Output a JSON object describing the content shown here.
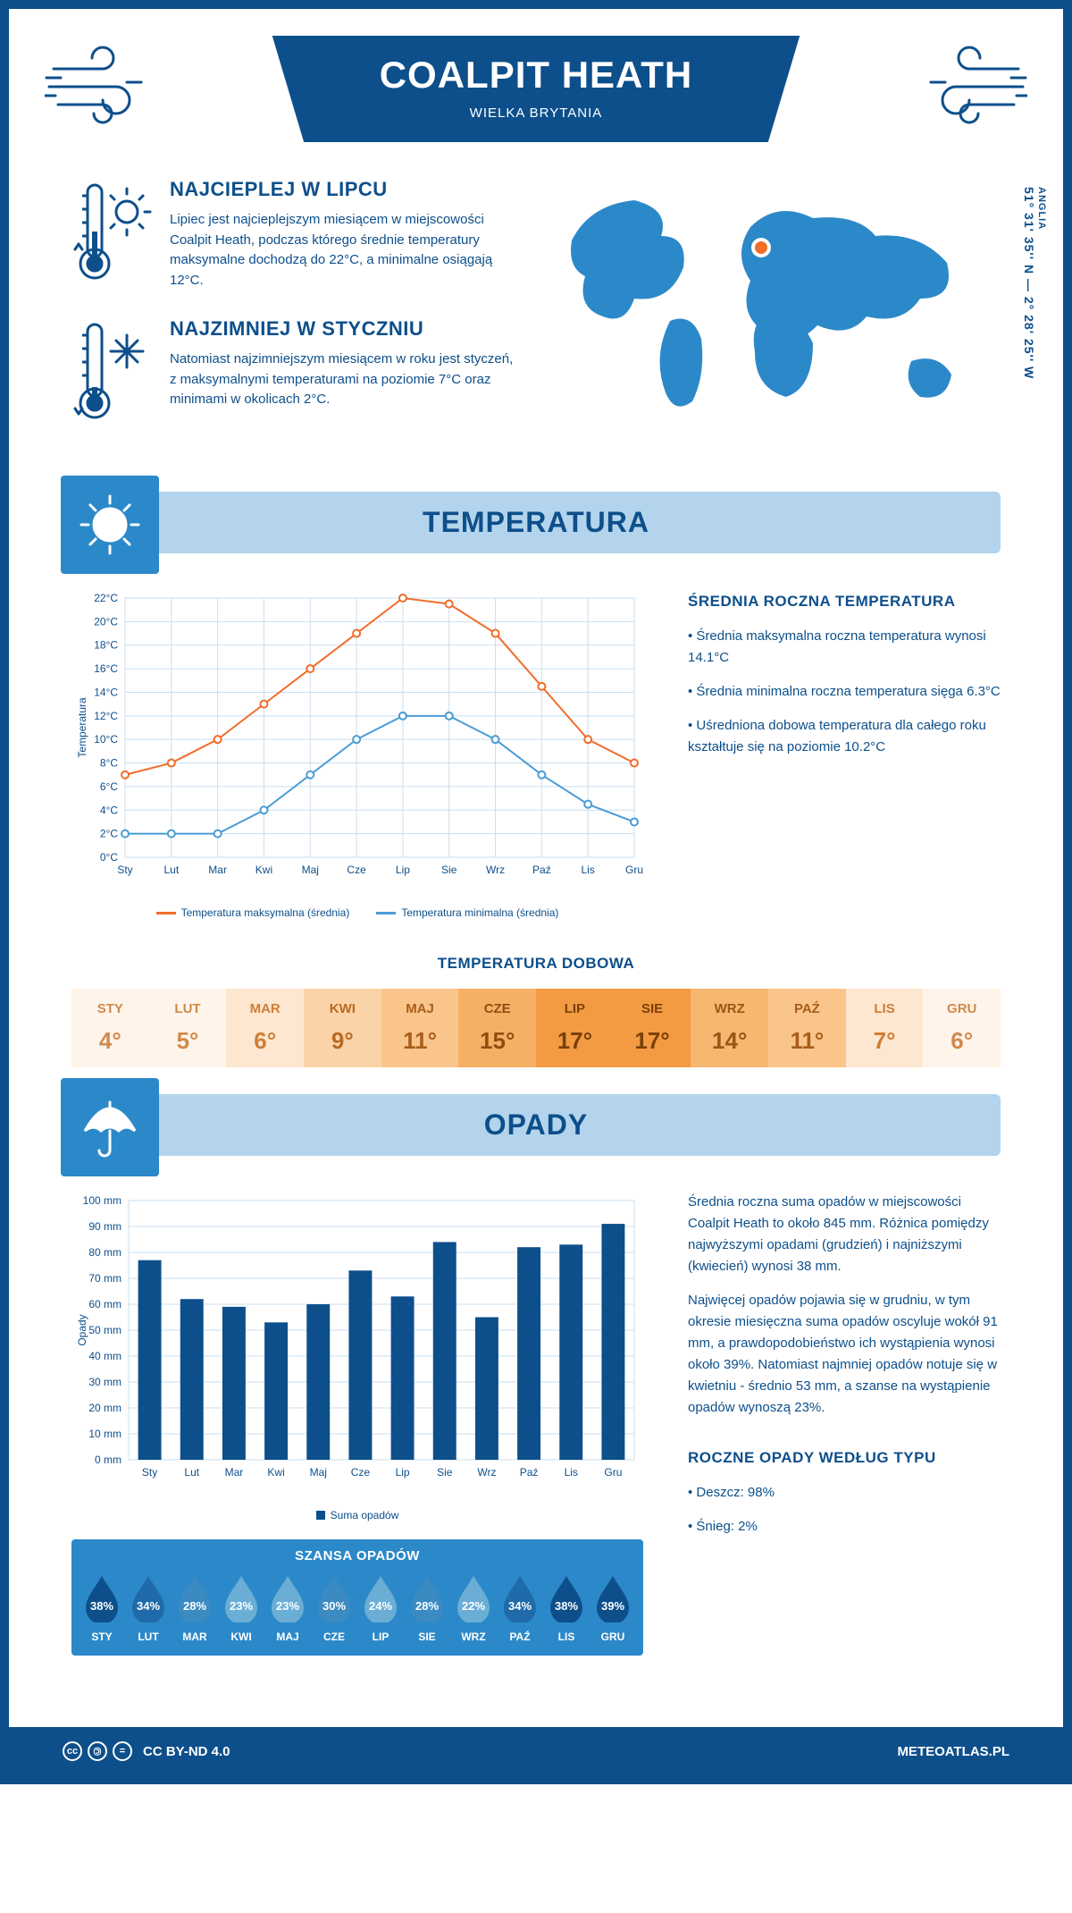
{
  "header": {
    "title": "COALPIT HEATH",
    "subtitle": "WIELKA BRYTANIA"
  },
  "coords": {
    "region": "ANGLIA",
    "value": "51° 31' 35'' N — 2° 28' 25'' W"
  },
  "fact_warm": {
    "title": "NAJCIEPLEJ W LIPCU",
    "text": "Lipiec jest najcieplejszym miesiącem w miejscowości Coalpit Heath, podczas którego średnie temperatury maksymalne dochodzą do 22°C, a minimalne osiągają 12°C."
  },
  "fact_cold": {
    "title": "NAJZIMNIEJ W STYCZNIU",
    "text": "Natomiast najzimniejszym miesiącem w roku jest styczeń, z maksymalnymi temperaturami na poziomie 7°C oraz minimami w okolicach 2°C."
  },
  "colors": {
    "primary": "#0d4f8b",
    "light_blue": "#b3d4ec",
    "mid_blue": "#2c89c9",
    "bar": "#0d4f8b",
    "line_max": "#f26c2a",
    "line_min": "#4a9cd6",
    "grid": "#c9dff0",
    "white": "#ffffff"
  },
  "temp_section": {
    "title": "TEMPERATURA"
  },
  "temp_chart": {
    "type": "line",
    "months": [
      "Sty",
      "Lut",
      "Mar",
      "Kwi",
      "Maj",
      "Cze",
      "Lip",
      "Sie",
      "Wrz",
      "Paź",
      "Lis",
      "Gru"
    ],
    "max": [
      7,
      8,
      10,
      13,
      16,
      19,
      22,
      21.5,
      19,
      14.5,
      10,
      8
    ],
    "min": [
      2,
      2,
      2,
      4,
      7,
      10,
      12,
      12,
      10,
      7,
      4.5,
      3
    ],
    "ylim": [
      0,
      22
    ],
    "ytick_step": 2,
    "ylabel": "Temperatura",
    "y_tick_suffix": "°C",
    "legend_max": "Temperatura maksymalna (średnia)",
    "legend_min": "Temperatura minimalna (średnia)",
    "line_width": 2,
    "marker_r": 4,
    "grid_color": "#c9dff0",
    "background": "#ffffff"
  },
  "temp_side": {
    "title": "ŚREDNIA ROCZNA TEMPERATURA",
    "items": [
      "• Średnia maksymalna roczna temperatura wynosi 14.1°C",
      "• Średnia minimalna roczna temperatura sięga 6.3°C",
      "• Uśredniona dobowa temperatura dla całego roku kształtuje się na poziomie 10.2°C"
    ]
  },
  "daily": {
    "title": "TEMPERATURA DOBOWA",
    "cells": [
      {
        "m": "STY",
        "t": "4°",
        "bg": "#fef4ea",
        "fg": "#d08a4a"
      },
      {
        "m": "LUT",
        "t": "5°",
        "bg": "#fef4ea",
        "fg": "#d08a4a"
      },
      {
        "m": "MAR",
        "t": "6°",
        "bg": "#fde7d0",
        "fg": "#cf7e36"
      },
      {
        "m": "KWI",
        "t": "9°",
        "bg": "#fbd3a8",
        "fg": "#b76a23"
      },
      {
        "m": "MAJ",
        "t": "11°",
        "bg": "#f9c58a",
        "fg": "#a85d1a"
      },
      {
        "m": "CZE",
        "t": "15°",
        "bg": "#f6b066",
        "fg": "#8f4e11"
      },
      {
        "m": "LIP",
        "t": "17°",
        "bg": "#f39b42",
        "fg": "#7a4009"
      },
      {
        "m": "SIE",
        "t": "17°",
        "bg": "#f39b42",
        "fg": "#7a4009"
      },
      {
        "m": "WRZ",
        "t": "14°",
        "bg": "#f7b771",
        "fg": "#975715"
      },
      {
        "m": "PAŹ",
        "t": "11°",
        "bg": "#f9c58a",
        "fg": "#a85d1a"
      },
      {
        "m": "LIS",
        "t": "7°",
        "bg": "#fde7d0",
        "fg": "#cf7e36"
      },
      {
        "m": "GRU",
        "t": "6°",
        "bg": "#fef4ea",
        "fg": "#d08a4a"
      }
    ]
  },
  "precip_section": {
    "title": "OPADY"
  },
  "precip_chart": {
    "type": "bar",
    "months": [
      "Sty",
      "Lut",
      "Mar",
      "Kwi",
      "Maj",
      "Cze",
      "Lip",
      "Sie",
      "Wrz",
      "Paź",
      "Lis",
      "Gru"
    ],
    "values": [
      77,
      62,
      59,
      53,
      60,
      73,
      63,
      84,
      55,
      82,
      83,
      91
    ],
    "ylim": [
      0,
      100
    ],
    "ytick_step": 10,
    "ylabel": "Opady",
    "y_tick_suffix": " mm",
    "legend": "Suma opadów",
    "bar_color": "#0d4f8b",
    "bar_width": 0.55,
    "grid_color": "#c9dff0",
    "background": "#ffffff"
  },
  "precip_side": {
    "p1": "Średnia roczna suma opadów w miejscowości Coalpit Heath to około 845 mm. Różnica pomiędzy najwyższymi opadami (grudzień) i najniższymi (kwiecień) wynosi 38 mm.",
    "p2": "Najwięcej opadów pojawia się w grudniu, w tym okresie miesięczna suma opadów oscyluje wokół 91 mm, a prawdopodobieństwo ich wystąpienia wynosi około 39%. Natomiast najmniej opadów notuje się w kwietniu - średnio 53 mm, a szanse na wystąpienie opadów wynoszą 23%."
  },
  "chance": {
    "title": "SZANSA OPADÓW",
    "items": [
      {
        "m": "STY",
        "pct": "38%",
        "fill": "#0d4f8b"
      },
      {
        "m": "LUT",
        "pct": "34%",
        "fill": "#1f6aa8"
      },
      {
        "m": "MAR",
        "pct": "28%",
        "fill": "#3b8ac1"
      },
      {
        "m": "KWI",
        "pct": "23%",
        "fill": "#6aaed6"
      },
      {
        "m": "MAJ",
        "pct": "23%",
        "fill": "#6aaed6"
      },
      {
        "m": "CZE",
        "pct": "30%",
        "fill": "#3b8ac1"
      },
      {
        "m": "LIP",
        "pct": "24%",
        "fill": "#6aaed6"
      },
      {
        "m": "SIE",
        "pct": "28%",
        "fill": "#3b8ac1"
      },
      {
        "m": "WRZ",
        "pct": "22%",
        "fill": "#6aaed6"
      },
      {
        "m": "PAŹ",
        "pct": "34%",
        "fill": "#1f6aa8"
      },
      {
        "m": "LIS",
        "pct": "38%",
        "fill": "#0d4f8b"
      },
      {
        "m": "GRU",
        "pct": "39%",
        "fill": "#0d4f8b"
      }
    ]
  },
  "precip_type": {
    "title": "ROCZNE OPADY WEDŁUG TYPU",
    "items": [
      "• Deszcz: 98%",
      "• Śnieg: 2%"
    ]
  },
  "footer": {
    "license": "CC BY-ND 4.0",
    "site": "METEOATLAS.PL"
  }
}
